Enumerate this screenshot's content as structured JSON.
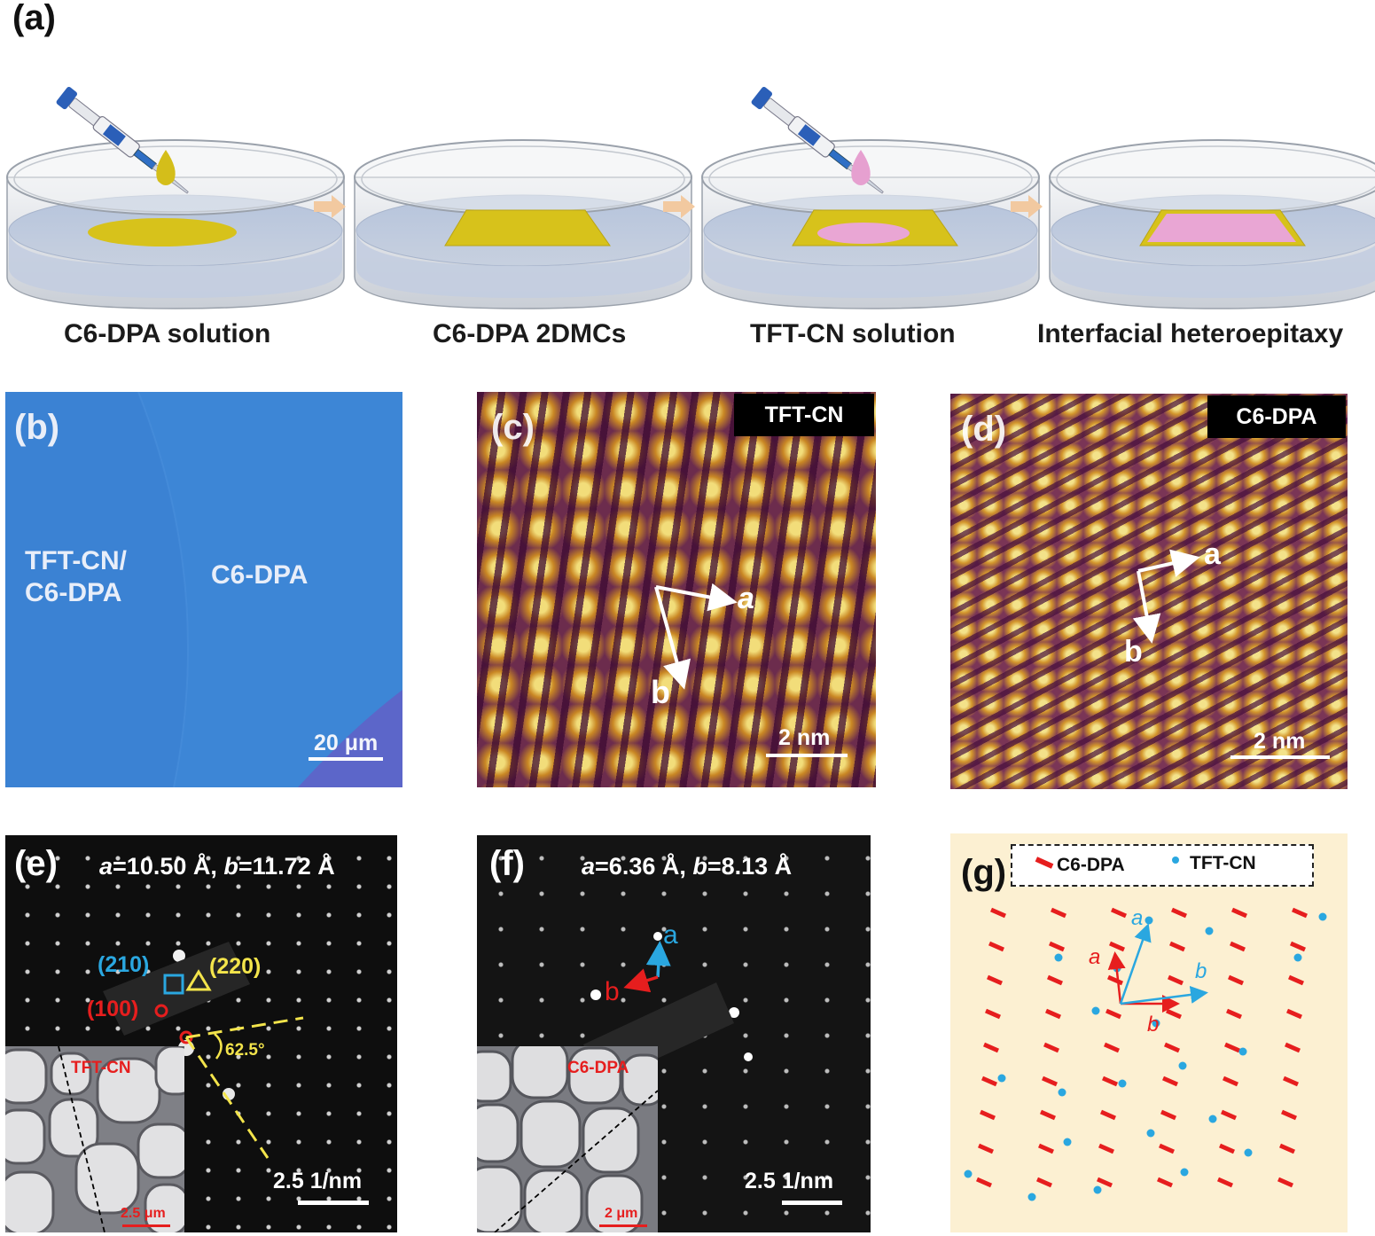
{
  "panel_a": {
    "letter": "(a)",
    "steps": [
      {
        "label": "C6-DPA solution"
      },
      {
        "label": "C6-DPA 2DMCs"
      },
      {
        "label": "TFT-CN solution"
      },
      {
        "label": "Interfacial heteroepitaxy"
      }
    ],
    "colors": {
      "yellow": "#d7c21b",
      "pink": "#e9a6d4",
      "liquid": "#b9c8e0",
      "arrow": "#f2c9a0"
    }
  },
  "panel_b": {
    "letter": "(b)",
    "label_left_line1": "TFT-CN/",
    "label_left_line2": "C6-DPA",
    "label_right": "C6-DPA",
    "scale": "20 μm",
    "colors": {
      "background": "#3d86d6"
    }
  },
  "panel_c": {
    "letter": "(c)",
    "tag": "TFT-CN",
    "axis_a": "a",
    "axis_b": "b",
    "scale": "2 nm"
  },
  "panel_d": {
    "letter": "(d)",
    "tag": "C6-DPA",
    "axis_a": "a",
    "axis_b": "b",
    "scale": "2 nm"
  },
  "panel_e": {
    "letter": "(e)",
    "param_a_sym": "a",
    "param_a_val": "=10.50 Å, ",
    "param_b_sym": "b",
    "param_b_val": "=11.72 Å",
    "index_210": "(210)",
    "index_220": "(220)",
    "index_100": "(100)",
    "angle": "62.5°",
    "inset_label": "TFT-CN",
    "inset_scale": "2.5 μm",
    "scale": "2.5 1/nm"
  },
  "panel_f": {
    "letter": "(f)",
    "param_a_sym": "a",
    "param_a_val": "=6.36 Å, ",
    "param_b_sym": "b",
    "param_b_val": "=8.13 Å",
    "axis_a": "a",
    "axis_b": "b",
    "inset_label": "C6-DPA",
    "inset_scale": "2 μm",
    "scale": "2.5 1/nm"
  },
  "panel_g": {
    "letter": "(g)",
    "legend_c6": "C6-DPA",
    "legend_tft": "TFT-CN",
    "vec_red_a": "a",
    "vec_red_b": "b",
    "vec_blue_a": "a",
    "vec_blue_b": "b",
    "colors": {
      "background": "#fcf0d2",
      "red": "#e61e1e",
      "blue": "#2aa7e0"
    }
  }
}
